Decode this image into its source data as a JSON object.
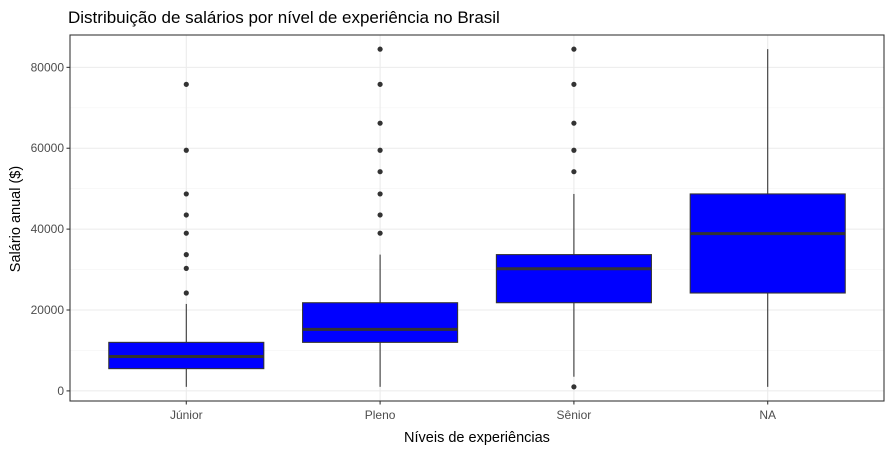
{
  "chart_data": {
    "type": "boxplot",
    "title": "Distribuição de salários por nível de experiência no Brasil",
    "xlabel": "Níveis de experiências",
    "ylabel": "Salário anual ($)",
    "ylim": [
      -2500,
      88000
    ],
    "y_ticks": [
      0,
      20000,
      40000,
      60000,
      80000
    ],
    "y_tick_labels": [
      "0",
      "20000",
      "40000",
      "60000",
      "80000"
    ],
    "grid": true,
    "fill_color": "#0000ff",
    "categories": [
      "Júnior",
      "Pleno",
      "Sênior",
      "NA"
    ],
    "boxes": [
      {
        "category": "Júnior",
        "whisker_low": 1000,
        "q1": 5500,
        "median": 8500,
        "q3": 12000,
        "whisker_high": 21500,
        "outliers": [
          24200,
          30300,
          33700,
          39000,
          43500,
          48700,
          59500,
          75800
        ]
      },
      {
        "category": "Pleno",
        "whisker_low": 1000,
        "q1": 12000,
        "median": 15200,
        "q3": 21800,
        "whisker_high": 33700,
        "outliers": [
          39000,
          43500,
          48700,
          54200,
          59500,
          66200,
          75800,
          84500
        ]
      },
      {
        "category": "Sênior",
        "whisker_low": 3500,
        "q1": 21800,
        "median": 30200,
        "q3": 33700,
        "whisker_high": 48700,
        "outliers": [
          1000,
          54200,
          59500,
          66200,
          75800,
          84500
        ]
      },
      {
        "category": "NA",
        "whisker_low": 1000,
        "q1": 24200,
        "median": 38900,
        "q3": 48700,
        "whisker_high": 84500,
        "outliers": []
      }
    ]
  }
}
